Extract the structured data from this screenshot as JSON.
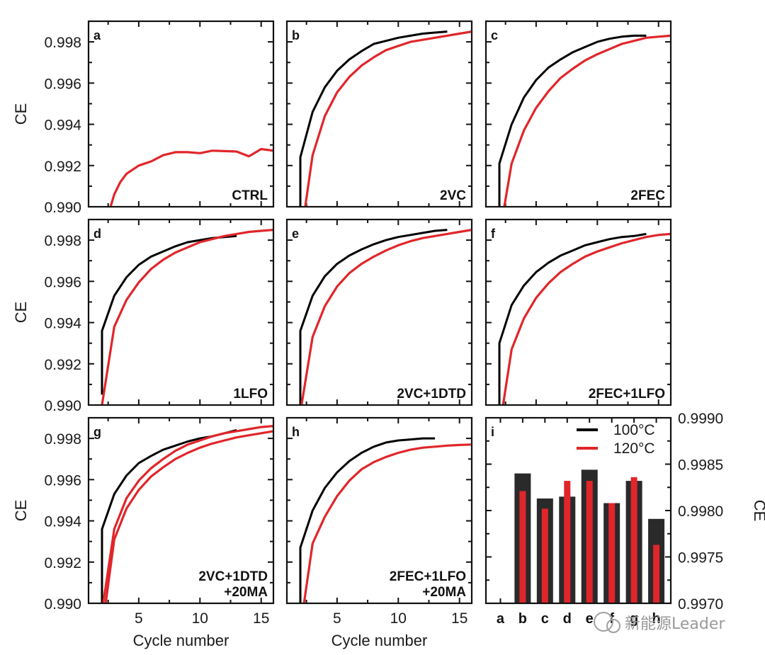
{
  "figure": {
    "watermark": "新能源Leader",
    "colors": {
      "series_100": "#000000",
      "series_120": "#e0262a",
      "bar_100": "#2a2a2a"
    }
  },
  "chart_data": [
    {
      "type": "line",
      "panel": "a",
      "title": "CTRL",
      "xlabel": "",
      "ylabel": "CE",
      "xlim": [
        0.9,
        16
      ],
      "ylim": [
        0.99,
        0.999
      ],
      "yticks": [
        "0.990",
        "0.992",
        "0.994",
        "0.996",
        "0.998"
      ],
      "xticks": [],
      "series": [
        {
          "name": "120°C",
          "color": "red",
          "x": [
            2.7,
            3,
            3.5,
            4,
            5,
            6,
            7,
            8,
            9,
            10,
            11,
            12,
            13,
            14,
            15,
            16
          ],
          "y": [
            0.99,
            0.9906,
            0.9912,
            0.9916,
            0.992,
            0.9922,
            0.9925,
            0.99265,
            0.99265,
            0.9926,
            0.99272,
            0.9927,
            0.99268,
            0.99245,
            0.9928,
            0.99272
          ]
        }
      ]
    },
    {
      "type": "line",
      "panel": "b",
      "title": "2VC",
      "xlabel": "",
      "ylabel": "",
      "xlim": [
        0.9,
        16
      ],
      "ylim": [
        0.99,
        0.999
      ],
      "yticks": [],
      "xticks": [],
      "series": [
        {
          "name": "100°C",
          "color": "black",
          "x": [
            2,
            2,
            3,
            4,
            5,
            6,
            7,
            8,
            9,
            10,
            11,
            12,
            13,
            14
          ],
          "y": [
            0.99,
            0.9924,
            0.9946,
            0.9958,
            0.9966,
            0.99715,
            0.99755,
            0.9979,
            0.99805,
            0.9982,
            0.9983,
            0.9984,
            0.99845,
            0.9985
          ]
        },
        {
          "name": "120°C",
          "color": "red",
          "x": [
            2.4,
            3,
            4,
            5,
            6,
            7,
            8,
            9,
            10,
            11,
            12,
            13,
            14,
            15,
            16
          ],
          "y": [
            0.99,
            0.9925,
            0.9944,
            0.99555,
            0.9963,
            0.99685,
            0.99725,
            0.9976,
            0.9978,
            0.998,
            0.9981,
            0.9982,
            0.9983,
            0.9984,
            0.9985
          ]
        }
      ]
    },
    {
      "type": "line",
      "panel": "c",
      "title": "2FEC",
      "xlabel": "",
      "ylabel": "",
      "xlim": [
        0.9,
        16
      ],
      "ylim": [
        0.99,
        0.999
      ],
      "yticks": [],
      "xticks": [],
      "series": [
        {
          "name": "100°C",
          "color": "black",
          "x": [
            2,
            2,
            3,
            4,
            5,
            6,
            7,
            8,
            9,
            10,
            11,
            12,
            13,
            14
          ],
          "y": [
            0.99,
            0.9921,
            0.994,
            0.9953,
            0.99615,
            0.99675,
            0.99715,
            0.9975,
            0.99775,
            0.998,
            0.99815,
            0.99825,
            0.9983,
            0.9983
          ]
        },
        {
          "name": "120°C",
          "color": "red",
          "x": [
            2.4,
            3,
            4,
            5,
            6,
            7,
            8,
            9,
            10,
            11,
            12,
            13,
            14,
            15,
            16
          ],
          "y": [
            0.99,
            0.9921,
            0.9937,
            0.9948,
            0.9956,
            0.99625,
            0.9967,
            0.9971,
            0.9974,
            0.99765,
            0.9979,
            0.99805,
            0.9982,
            0.99825,
            0.9983
          ]
        }
      ]
    },
    {
      "type": "line",
      "panel": "d",
      "title": "1LFO",
      "xlabel": "",
      "ylabel": "CE",
      "xlim": [
        0.9,
        16
      ],
      "ylim": [
        0.99,
        0.999
      ],
      "yticks": [
        "0.990",
        "0.992",
        "0.994",
        "0.996",
        "0.998"
      ],
      "xticks": [],
      "series": [
        {
          "name": "100°C",
          "color": "black",
          "x": [
            2,
            2,
            3,
            4,
            5,
            6,
            7,
            8,
            9,
            10,
            11,
            12,
            13
          ],
          "y": [
            0.9905,
            0.9936,
            0.9953,
            0.9962,
            0.9968,
            0.9972,
            0.99745,
            0.9977,
            0.9979,
            0.998,
            0.9981,
            0.99815,
            0.9982
          ]
        },
        {
          "name": "120°C",
          "color": "red",
          "x": [
            2,
            3,
            4,
            5,
            6,
            7,
            8,
            9,
            10,
            11,
            12,
            13,
            14,
            15,
            16
          ],
          "y": [
            0.99,
            0.9938,
            0.9951,
            0.99595,
            0.9966,
            0.99705,
            0.9974,
            0.99765,
            0.9979,
            0.99805,
            0.9982,
            0.9983,
            0.9984,
            0.99845,
            0.9985
          ]
        }
      ]
    },
    {
      "type": "line",
      "panel": "e",
      "title": "2VC+1DTD",
      "xlabel": "",
      "ylabel": "",
      "xlim": [
        0.9,
        16
      ],
      "ylim": [
        0.99,
        0.999
      ],
      "yticks": [],
      "xticks": [],
      "series": [
        {
          "name": "100°C",
          "color": "black",
          "x": [
            2,
            2,
            3,
            4,
            5,
            6,
            7,
            8,
            9,
            10,
            11,
            12,
            13,
            14
          ],
          "y": [
            0.99,
            0.9936,
            0.9953,
            0.99625,
            0.99685,
            0.99725,
            0.99755,
            0.9978,
            0.998,
            0.99815,
            0.99825,
            0.99835,
            0.99845,
            0.9985
          ]
        },
        {
          "name": "120°C",
          "color": "red",
          "x": [
            2.1,
            3,
            4,
            5,
            6,
            7,
            8,
            9,
            10,
            11,
            12,
            13,
            14,
            15,
            16
          ],
          "y": [
            0.99,
            0.9933,
            0.9948,
            0.99575,
            0.9964,
            0.99685,
            0.9972,
            0.9975,
            0.99775,
            0.99795,
            0.9981,
            0.9982,
            0.9983,
            0.9984,
            0.9985
          ]
        }
      ]
    },
    {
      "type": "line",
      "panel": "f",
      "title": "2FEC+1LFO",
      "xlabel": "",
      "ylabel": "",
      "xlim": [
        0.9,
        16
      ],
      "ylim": [
        0.99,
        0.999
      ],
      "yticks": [],
      "xticks": [],
      "series": [
        {
          "name": "100°C",
          "color": "black",
          "x": [
            2,
            2,
            3,
            4,
            5,
            6,
            7,
            8,
            9,
            10,
            11,
            12,
            13,
            14
          ],
          "y": [
            0.99,
            0.993,
            0.99485,
            0.9958,
            0.99645,
            0.9969,
            0.99725,
            0.9975,
            0.99775,
            0.9979,
            0.99805,
            0.99815,
            0.9982,
            0.9983
          ]
        },
        {
          "name": "120°C",
          "color": "red",
          "x": [
            2.3,
            3,
            4,
            5,
            6,
            7,
            8,
            9,
            10,
            11,
            12,
            13,
            14,
            15,
            16
          ],
          "y": [
            0.99,
            0.9927,
            0.9942,
            0.9952,
            0.9959,
            0.99645,
            0.99685,
            0.9972,
            0.99745,
            0.99765,
            0.99785,
            0.998,
            0.99815,
            0.99825,
            0.9983
          ]
        }
      ]
    },
    {
      "type": "line",
      "panel": "g",
      "title": "2VC+1DTD\n+20MA",
      "title_lines": [
        "2VC+1DTD",
        "+20MA"
      ],
      "xlabel": "Cycle number",
      "ylabel": "CE",
      "xlim": [
        0.9,
        16
      ],
      "ylim": [
        0.99,
        0.999
      ],
      "yticks": [
        "0.990",
        "0.992",
        "0.994",
        "0.996",
        "0.998"
      ],
      "xticks": [
        "5",
        "10",
        "15"
      ],
      "series": [
        {
          "name": "100°C",
          "color": "black",
          "x": [
            2,
            2,
            3,
            4,
            5,
            6,
            7,
            8,
            9,
            10,
            11,
            12,
            13
          ],
          "y": [
            0.99,
            0.9936,
            0.9953,
            0.9962,
            0.9968,
            0.99715,
            0.99745,
            0.99765,
            0.99785,
            0.998,
            0.9981,
            0.99825,
            0.9984
          ]
        },
        {
          "name": "120°C (1)",
          "color": "red",
          "x": [
            2.1,
            3,
            4,
            5,
            6,
            7,
            8,
            9,
            10,
            11,
            12,
            13,
            14,
            15,
            16
          ],
          "y": [
            0.99,
            0.9936,
            0.9951,
            0.99595,
            0.99655,
            0.997,
            0.9974,
            0.9977,
            0.9979,
            0.9981,
            0.99825,
            0.99835,
            0.99845,
            0.99855,
            0.9986
          ]
        },
        {
          "name": "120°C (2)",
          "color": "red",
          "x": [
            2.3,
            3,
            4,
            5,
            6,
            7,
            8,
            9,
            10,
            11,
            12,
            13,
            14,
            15,
            16
          ],
          "y": [
            0.99,
            0.9931,
            0.9946,
            0.9955,
            0.99615,
            0.9966,
            0.997,
            0.9973,
            0.99755,
            0.99775,
            0.9979,
            0.99805,
            0.99815,
            0.99825,
            0.99835
          ]
        }
      ]
    },
    {
      "type": "line",
      "panel": "h",
      "title": "2FEC+1LFO\n+20MA",
      "title_lines": [
        "2FEC+1LFO",
        "+20MA"
      ],
      "xlabel": "Cycle number",
      "ylabel": "",
      "xlim": [
        0.9,
        16
      ],
      "ylim": [
        0.99,
        0.999
      ],
      "yticks": [],
      "xticks": [
        "5",
        "10",
        "15"
      ],
      "series": [
        {
          "name": "100°C",
          "color": "black",
          "x": [
            2,
            2,
            3,
            4,
            5,
            6,
            7,
            8,
            9,
            10,
            11,
            12,
            13
          ],
          "y": [
            0.99,
            0.9927,
            0.9945,
            0.9956,
            0.99635,
            0.9969,
            0.9973,
            0.9976,
            0.9978,
            0.9979,
            0.99795,
            0.998,
            0.998
          ]
        },
        {
          "name": "120°C",
          "color": "red",
          "x": [
            2.3,
            3,
            4,
            5,
            6,
            7,
            8,
            9,
            10,
            11,
            12,
            13,
            14,
            15,
            16
          ],
          "y": [
            0.99,
            0.9929,
            0.9942,
            0.9952,
            0.99595,
            0.9965,
            0.99685,
            0.9971,
            0.9973,
            0.99745,
            0.99755,
            0.9976,
            0.99765,
            0.99768,
            0.9977
          ]
        }
      ]
    },
    {
      "type": "bar",
      "panel": "i",
      "title": "",
      "xlabel": "",
      "ylabel": "CE",
      "ylabel_side": "right",
      "ylim": [
        0.997,
        0.999
      ],
      "yticks": [
        "0.9970",
        "0.9975",
        "0.9980",
        "0.9985",
        "0.9990"
      ],
      "categories": [
        "a",
        "b",
        "c",
        "d",
        "e",
        "f",
        "g",
        "h"
      ],
      "legend": {
        "position": "top-right",
        "entries": [
          "100°C",
          "120°C"
        ]
      },
      "series": [
        {
          "name": "100°C",
          "color": "black",
          "style": "wide",
          "values": [
            null,
            0.9984,
            0.99813,
            0.99815,
            0.99844,
            0.99808,
            0.99832,
            0.99791
          ]
        },
        {
          "name": "120°C",
          "color": "red",
          "style": "narrow",
          "values": [
            null,
            0.99821,
            0.99802,
            0.99832,
            0.99832,
            0.99808,
            0.99836,
            0.99763
          ]
        }
      ]
    }
  ]
}
